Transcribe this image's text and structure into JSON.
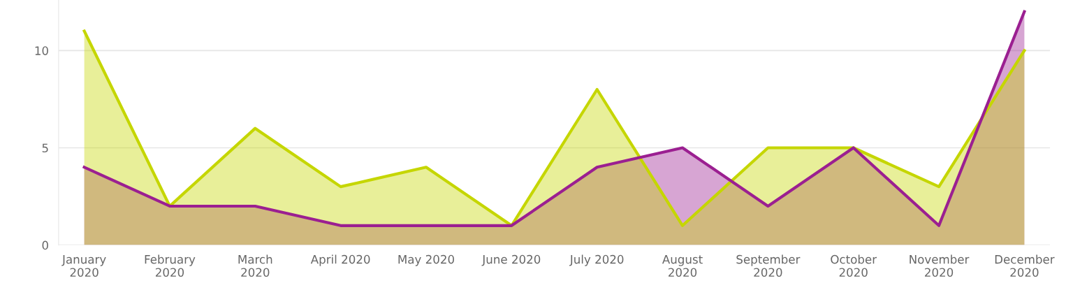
{
  "chart_data": {
    "type": "area",
    "categories": [
      "January\n2020",
      "February\n2020",
      "March\n2020",
      "April 2020",
      "May 2020",
      "June 2020",
      "July 2020",
      "August\n2020",
      "September\n2020",
      "October\n2020",
      "November\n2020",
      "December\n2020"
    ],
    "series": [
      {
        "color": "#c5d600",
        "values": [
          11,
          2,
          6,
          3,
          4,
          1,
          8,
          1,
          5,
          5,
          3,
          10
        ]
      },
      {
        "color": "#9b1f91",
        "values": [
          4,
          2,
          2,
          1,
          1,
          1,
          4,
          5,
          2,
          5,
          1,
          12
        ]
      }
    ],
    "ylim": [
      0,
      12.6
    ],
    "yticks": [
      0,
      5,
      10
    ],
    "grid": "y"
  }
}
